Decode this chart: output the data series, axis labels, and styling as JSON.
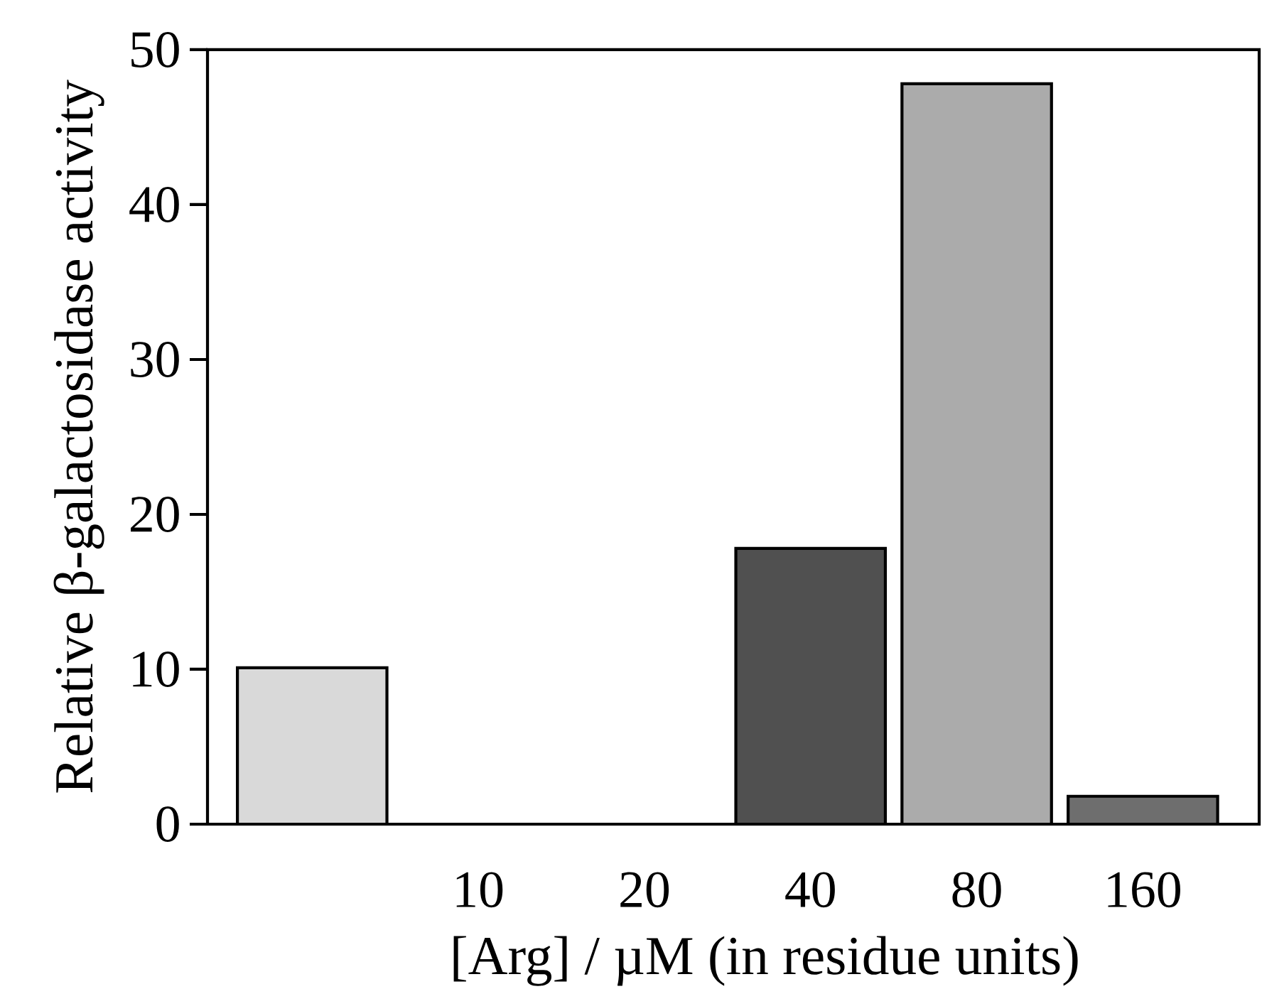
{
  "chart_data": {
    "type": "bar",
    "xlabel": "[Arg] / µM (in residue units)",
    "ylabel": "Relative β-galactosidase activity",
    "categories": [
      null,
      "10",
      "20",
      "40",
      "80",
      "160"
    ],
    "values": [
      10.1,
      0,
      0,
      17.8,
      47.8,
      1.8
    ],
    "colors": [
      "#d9d9d9",
      "#000000",
      "#000000",
      "#505050",
      "#ababab",
      "#6e6e6e"
    ],
    "ylim": [
      0,
      50
    ],
    "yticks": [
      0,
      10,
      20,
      30,
      40,
      50
    ],
    "grid": false
  }
}
